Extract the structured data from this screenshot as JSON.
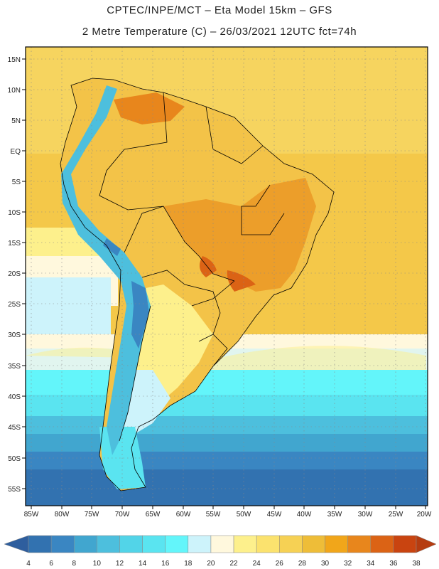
{
  "header": {
    "title_line1": "CPTEC/INPE/MCT –  Eta Model 15km – GFS",
    "title_line2": "2 Metre Temperature (C) – 26/03/2021 12UTC fct=74h"
  },
  "map": {
    "lat_labels": [
      "15N",
      "10N",
      "5N",
      "EQ",
      "5S",
      "10S",
      "15S",
      "20S",
      "25S",
      "30S",
      "35S",
      "40S",
      "45S",
      "50S",
      "55S"
    ],
    "lon_labels": [
      "85W",
      "80W",
      "75W",
      "70W",
      "65W",
      "60W",
      "55W",
      "50W",
      "45W",
      "40W",
      "35W",
      "30W",
      "25W",
      "20W"
    ]
  },
  "colorbar": {
    "labels": [
      "4",
      "6",
      "8",
      "10",
      "12",
      "14",
      "16",
      "18",
      "20",
      "22",
      "24",
      "26",
      "28",
      "30",
      "32",
      "34",
      "36",
      "38"
    ],
    "colors": [
      "#2e5e9e",
      "#3272b0",
      "#3a86c2",
      "#41a6cf",
      "#4dbfdd",
      "#52d4e8",
      "#5ae4f0",
      "#63f5fa",
      "#cdf3fb",
      "#fff8dd",
      "#fdf08c",
      "#fbe26e",
      "#f6d154",
      "#eebd38",
      "#f1a61a",
      "#e8861c",
      "#db6315",
      "#c94410",
      "#b53c10"
    ]
  }
}
